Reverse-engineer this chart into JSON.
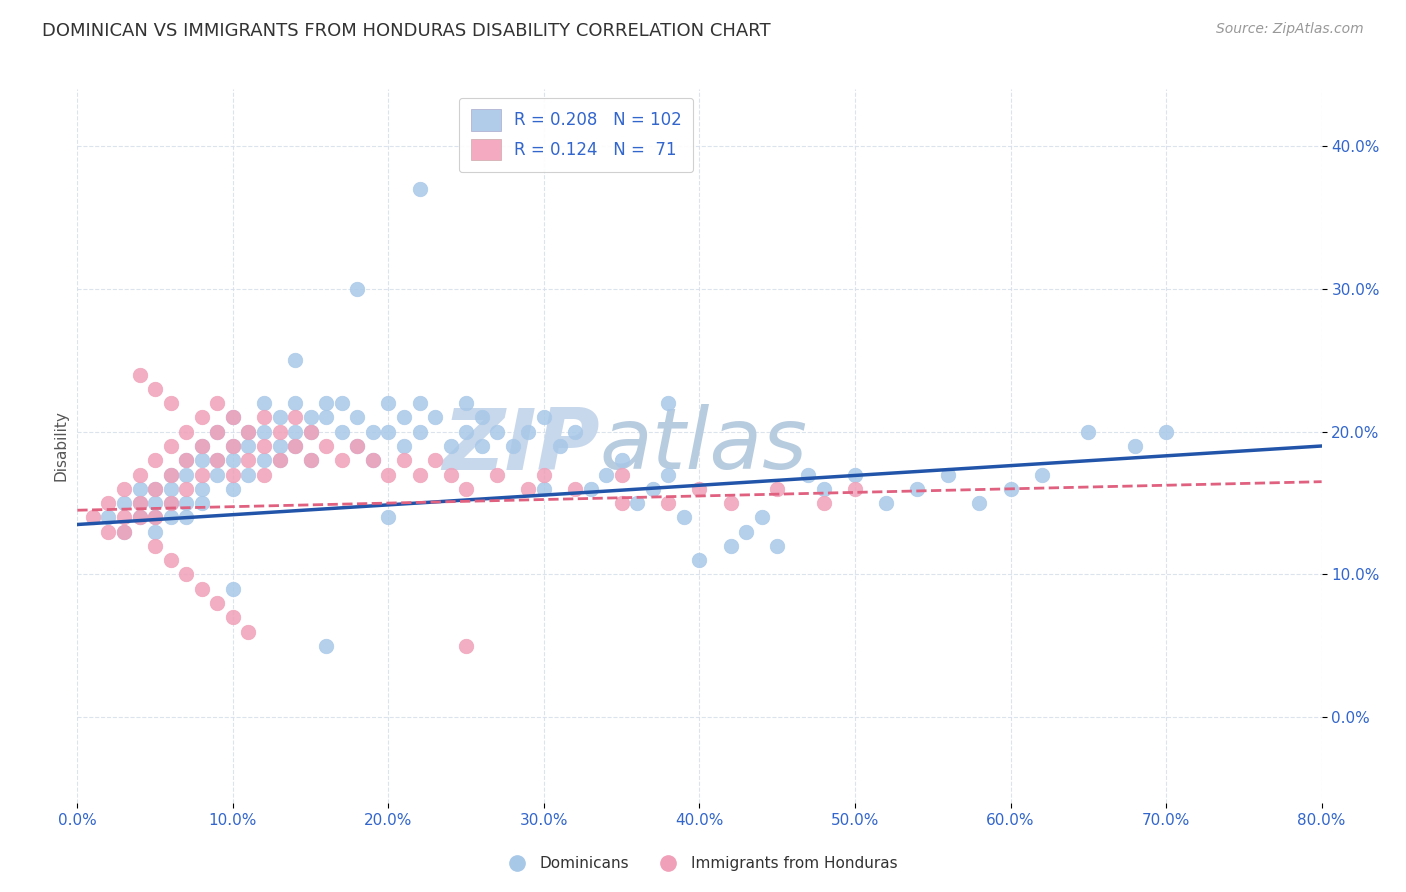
{
  "title": "DOMINICAN VS IMMIGRANTS FROM HONDURAS DISABILITY CORRELATION CHART",
  "source": "Source: ZipAtlas.com",
  "ylabel": "Disability",
  "xlim": [
    0.0,
    0.8
  ],
  "ylim": [
    -0.06,
    0.44
  ],
  "blue_R": 0.208,
  "blue_N": 102,
  "pink_R": 0.124,
  "pink_N": 71,
  "blue_color": "#a8c8e8",
  "pink_color": "#f0a0b8",
  "blue_line_color": "#2255aa",
  "pink_line_color": "#e06080",
  "legend_blue_face": "#b0cce8",
  "legend_pink_face": "#f4aac0",
  "legend_text_color": "#3366cc",
  "watermark_zip": "ZIP",
  "watermark_atlas": "atlas",
  "watermark_color": "#dce8f4",
  "background_color": "#ffffff",
  "title_fontsize": 13,
  "source_fontsize": 10,
  "axis_label_fontsize": 11,
  "tick_fontsize": 11,
  "legend_fontsize": 12,
  "grid_color": "#d8e0ec",
  "blue_x_points": [
    0.02,
    0.03,
    0.03,
    0.04,
    0.04,
    0.04,
    0.05,
    0.05,
    0.05,
    0.05,
    0.06,
    0.06,
    0.06,
    0.06,
    0.07,
    0.07,
    0.07,
    0.07,
    0.08,
    0.08,
    0.08,
    0.08,
    0.09,
    0.09,
    0.09,
    0.1,
    0.1,
    0.1,
    0.1,
    0.11,
    0.11,
    0.11,
    0.12,
    0.12,
    0.12,
    0.13,
    0.13,
    0.13,
    0.14,
    0.14,
    0.14,
    0.15,
    0.15,
    0.15,
    0.16,
    0.16,
    0.17,
    0.17,
    0.18,
    0.18,
    0.19,
    0.19,
    0.2,
    0.2,
    0.21,
    0.21,
    0.22,
    0.22,
    0.23,
    0.24,
    0.25,
    0.25,
    0.26,
    0.26,
    0.27,
    0.28,
    0.29,
    0.3,
    0.31,
    0.32,
    0.33,
    0.34,
    0.35,
    0.36,
    0.37,
    0.38,
    0.39,
    0.4,
    0.42,
    0.43,
    0.44,
    0.45,
    0.47,
    0.48,
    0.5,
    0.52,
    0.54,
    0.56,
    0.58,
    0.6,
    0.62,
    0.65,
    0.68,
    0.7,
    0.22,
    0.18,
    0.14,
    0.1,
    0.38,
    0.3,
    0.2,
    0.16
  ],
  "blue_y_points": [
    0.14,
    0.15,
    0.13,
    0.15,
    0.16,
    0.14,
    0.16,
    0.15,
    0.14,
    0.13,
    0.17,
    0.15,
    0.16,
    0.14,
    0.18,
    0.17,
    0.15,
    0.14,
    0.19,
    0.18,
    0.16,
    0.15,
    0.2,
    0.18,
    0.17,
    0.21,
    0.19,
    0.18,
    0.16,
    0.2,
    0.19,
    0.17,
    0.22,
    0.2,
    0.18,
    0.21,
    0.19,
    0.18,
    0.22,
    0.2,
    0.19,
    0.21,
    0.2,
    0.18,
    0.22,
    0.21,
    0.22,
    0.2,
    0.21,
    0.19,
    0.2,
    0.18,
    0.22,
    0.2,
    0.21,
    0.19,
    0.22,
    0.2,
    0.21,
    0.19,
    0.22,
    0.2,
    0.21,
    0.19,
    0.2,
    0.19,
    0.2,
    0.21,
    0.19,
    0.2,
    0.16,
    0.17,
    0.18,
    0.15,
    0.16,
    0.17,
    0.14,
    0.11,
    0.12,
    0.13,
    0.14,
    0.12,
    0.17,
    0.16,
    0.17,
    0.15,
    0.16,
    0.17,
    0.15,
    0.16,
    0.17,
    0.2,
    0.19,
    0.2,
    0.37,
    0.3,
    0.25,
    0.09,
    0.22,
    0.16,
    0.14,
    0.05
  ],
  "pink_x_points": [
    0.01,
    0.02,
    0.02,
    0.03,
    0.03,
    0.03,
    0.04,
    0.04,
    0.04,
    0.05,
    0.05,
    0.05,
    0.06,
    0.06,
    0.06,
    0.07,
    0.07,
    0.07,
    0.08,
    0.08,
    0.08,
    0.09,
    0.09,
    0.09,
    0.1,
    0.1,
    0.1,
    0.11,
    0.11,
    0.12,
    0.12,
    0.12,
    0.13,
    0.13,
    0.14,
    0.14,
    0.15,
    0.15,
    0.16,
    0.17,
    0.18,
    0.19,
    0.2,
    0.21,
    0.22,
    0.23,
    0.24,
    0.25,
    0.27,
    0.29,
    0.3,
    0.32,
    0.35,
    0.38,
    0.4,
    0.42,
    0.45,
    0.48,
    0.5,
    0.05,
    0.06,
    0.07,
    0.08,
    0.09,
    0.1,
    0.11,
    0.04,
    0.05,
    0.06,
    0.35,
    0.25
  ],
  "pink_y_points": [
    0.14,
    0.15,
    0.13,
    0.16,
    0.14,
    0.13,
    0.17,
    0.15,
    0.14,
    0.18,
    0.16,
    0.14,
    0.19,
    0.17,
    0.15,
    0.2,
    0.18,
    0.16,
    0.21,
    0.19,
    0.17,
    0.22,
    0.2,
    0.18,
    0.21,
    0.19,
    0.17,
    0.2,
    0.18,
    0.21,
    0.19,
    0.17,
    0.2,
    0.18,
    0.21,
    0.19,
    0.2,
    0.18,
    0.19,
    0.18,
    0.19,
    0.18,
    0.17,
    0.18,
    0.17,
    0.18,
    0.17,
    0.16,
    0.17,
    0.16,
    0.17,
    0.16,
    0.17,
    0.15,
    0.16,
    0.15,
    0.16,
    0.15,
    0.16,
    0.12,
    0.11,
    0.1,
    0.09,
    0.08,
    0.07,
    0.06,
    0.24,
    0.23,
    0.22,
    0.15,
    0.05
  ]
}
